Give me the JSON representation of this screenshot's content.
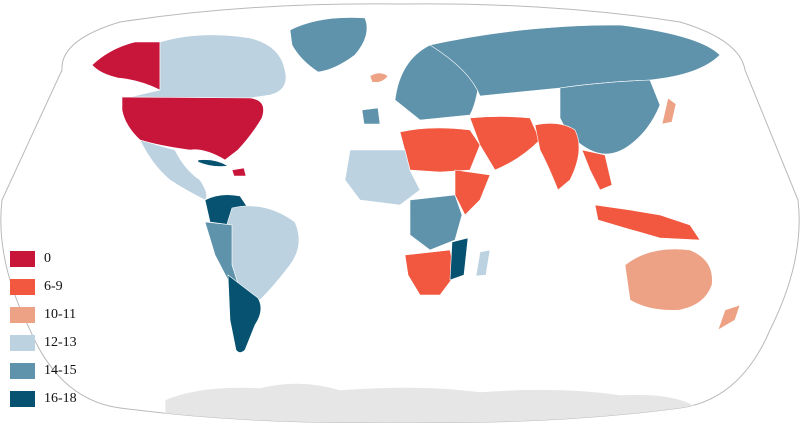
{
  "colors": {
    "ocean": "#ffffff",
    "outline": "#b9b9b9",
    "antarctica": "#e6e6e6",
    "c0": "#c8163a",
    "c6_9": "#f1583f",
    "c10_11": "#eda285",
    "c12_13": "#bcd2e0",
    "c14_15": "#5f93ab",
    "c16_18": "#065270",
    "islands": "#d8d8d8"
  },
  "legend": {
    "items": [
      {
        "label": "0",
        "color": "#c8163a"
      },
      {
        "label": "6-9",
        "color": "#f1583f"
      },
      {
        "label": "10-11",
        "color": "#eda285"
      },
      {
        "label": "12-13",
        "color": "#bcd2e0"
      },
      {
        "label": "14-15",
        "color": "#5f93ab"
      },
      {
        "label": "16-18",
        "color": "#065270"
      }
    ]
  }
}
